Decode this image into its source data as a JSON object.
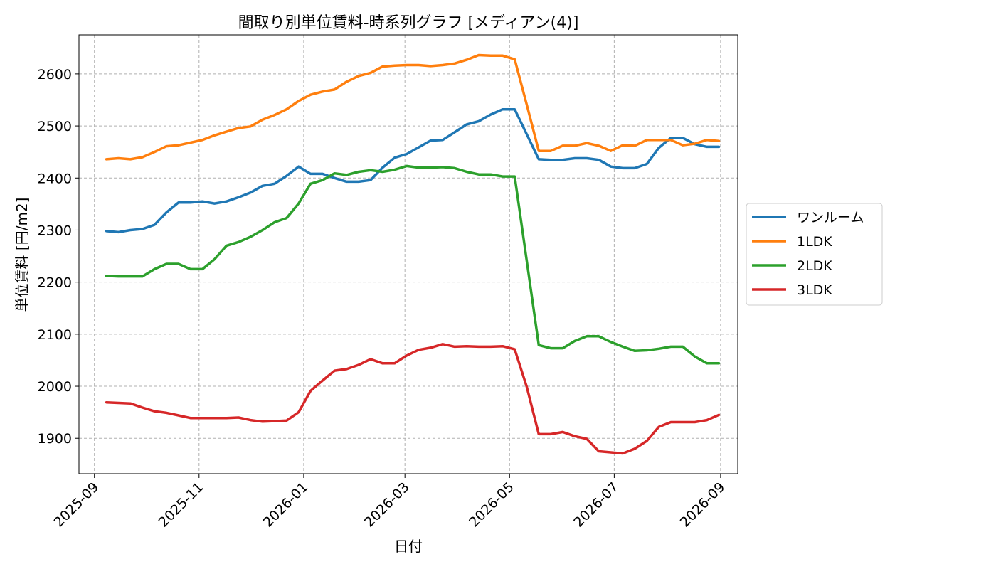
{
  "chart_data": {
    "type": "line",
    "title": "間取り別単位賃料-時系列グラフ [メディアン(4)]",
    "xlabel": "日付",
    "ylabel": "単位賃料 [円/m2]",
    "x_tick_labels": [
      "2025-09",
      "2025-11",
      "2026-01",
      "2026-03",
      "2026-05",
      "2026-07",
      "2026-09"
    ],
    "x_ticks": [
      "2025-09-01",
      "2025-11-01",
      "2026-01-01",
      "2026-03-01",
      "2026-05-01",
      "2026-07-01",
      "2026-09-01"
    ],
    "xlim": [
      "2025-08-23",
      "2026-09-11"
    ],
    "y_ticks": [
      1900,
      2000,
      2100,
      2200,
      2300,
      2400,
      2500,
      2600
    ],
    "ylim": [
      1832,
      2675
    ],
    "grid": true,
    "legend_position": "center-right-outside",
    "x": [
      "2025-09-08",
      "2025-09-15",
      "2025-09-22",
      "2025-09-29",
      "2025-10-06",
      "2025-10-13",
      "2025-10-20",
      "2025-10-27",
      "2025-11-03",
      "2025-11-10",
      "2025-11-17",
      "2025-11-24",
      "2025-12-01",
      "2025-12-08",
      "2025-12-15",
      "2025-12-22",
      "2025-12-29",
      "2026-01-05",
      "2026-01-12",
      "2026-01-19",
      "2026-01-26",
      "2026-02-02",
      "2026-02-09",
      "2026-02-16",
      "2026-02-23",
      "2026-03-02",
      "2026-03-09",
      "2026-03-16",
      "2026-03-23",
      "2026-03-30",
      "2026-04-06",
      "2026-04-13",
      "2026-04-20",
      "2026-04-27",
      "2026-05-04",
      "2026-05-11",
      "2026-05-18",
      "2026-05-25",
      "2026-06-01",
      "2026-06-08",
      "2026-06-15",
      "2026-06-22",
      "2026-06-29",
      "2026-07-06",
      "2026-07-13",
      "2026-07-20",
      "2026-07-27",
      "2026-08-03",
      "2026-08-10",
      "2026-08-17",
      "2026-08-24",
      "2026-08-31"
    ],
    "series": [
      {
        "name": "ワンルーム",
        "color": "#1f77b4",
        "values": [
          2298,
          2296,
          2300,
          2302,
          2310,
          2334,
          2353,
          2353,
          2355,
          2351,
          2355,
          2363,
          2372,
          2385,
          2389,
          2404,
          2422,
          2408,
          2408,
          2400,
          2393,
          2393,
          2396,
          2420,
          2439,
          2446,
          2459,
          2472,
          2473,
          2488,
          2503,
          2509,
          2522,
          2532,
          2532,
          2484,
          2436,
          2435,
          2435,
          2438,
          2438,
          2435,
          2422,
          2419,
          2419,
          2427,
          2458,
          2477,
          2477,
          2465,
          2460,
          2460
        ]
      },
      {
        "name": "1LDK",
        "color": "#ff7f0e",
        "values": [
          2436,
          2438,
          2436,
          2440,
          2450,
          2461,
          2463,
          2468,
          2473,
          2482,
          2489,
          2496,
          2499,
          2512,
          2521,
          2532,
          2548,
          2560,
          2566,
          2570,
          2585,
          2596,
          2602,
          2614,
          2616,
          2617,
          2617,
          2615,
          2617,
          2620,
          2627,
          2636,
          2635,
          2635,
          2628,
          2541,
          2452,
          2452,
          2462,
          2462,
          2467,
          2462,
          2452,
          2463,
          2462,
          2473,
          2473,
          2473,
          2463,
          2466,
          2473,
          2471
        ]
      },
      {
        "name": "2LDK",
        "color": "#2ca02c",
        "values": [
          2212,
          2211,
          2211,
          2211,
          2225,
          2235,
          2235,
          2225,
          2225,
          2244,
          2270,
          2277,
          2287,
          2300,
          2315,
          2323,
          2351,
          2389,
          2396,
          2409,
          2406,
          2412,
          2415,
          2412,
          2416,
          2423,
          2420,
          2420,
          2421,
          2419,
          2412,
          2407,
          2407,
          2403,
          2403,
          2241,
          2079,
          2073,
          2073,
          2087,
          2096,
          2096,
          2085,
          2076,
          2068,
          2069,
          2072,
          2076,
          2076,
          2057,
          2044,
          2044
        ]
      },
      {
        "name": "3LDK",
        "color": "#d62728",
        "values": [
          1969,
          1968,
          1967,
          1959,
          1952,
          1949,
          1944,
          1939,
          1939,
          1939,
          1939,
          1940,
          1935,
          1932,
          1933,
          1934,
          1950,
          1991,
          2011,
          2030,
          2033,
          2041,
          2052,
          2044,
          2044,
          2059,
          2070,
          2074,
          2081,
          2076,
          2077,
          2076,
          2076,
          2077,
          2071,
          1999,
          1908,
          1908,
          1912,
          1904,
          1899,
          1875,
          1873,
          1871,
          1880,
          1895,
          1922,
          1931,
          1931,
          1931,
          1935,
          1945
        ]
      }
    ]
  }
}
